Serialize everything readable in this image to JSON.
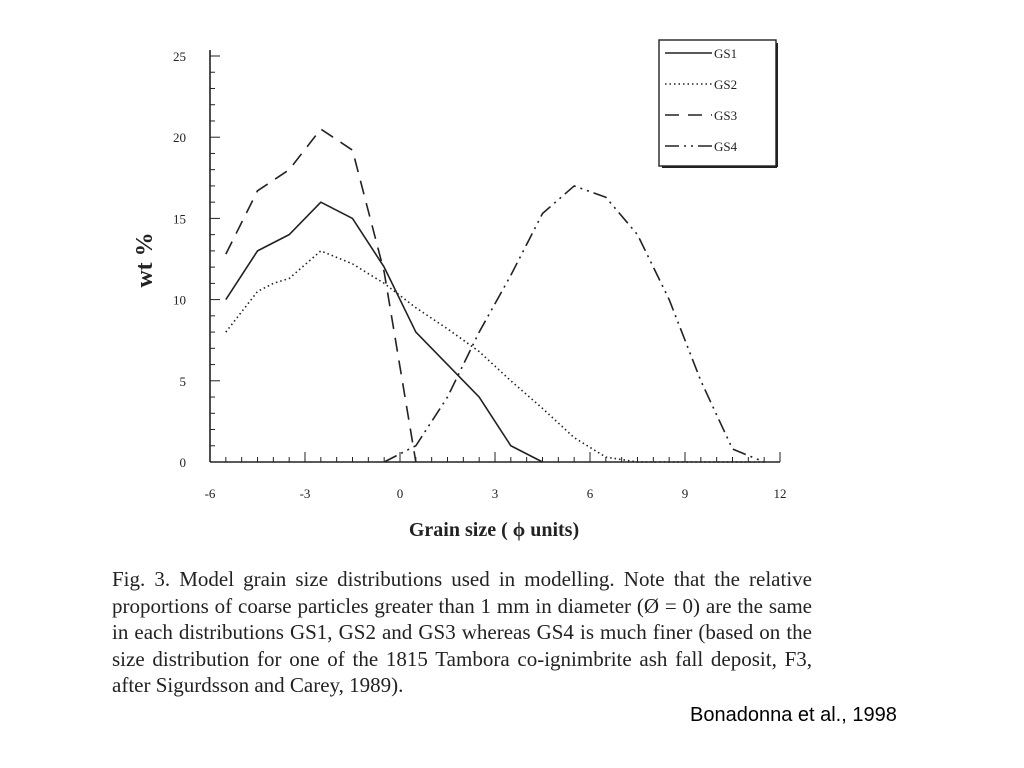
{
  "chart_data": {
    "type": "line",
    "title": "",
    "xlabel": "Grain size ( ϕ  units)",
    "ylabel": "wt %",
    "xlim": [
      -6,
      12
    ],
    "ylim": [
      0,
      25
    ],
    "xticks": [
      -6,
      -3,
      0,
      3,
      6,
      9,
      12
    ],
    "yticks": [
      0,
      5,
      10,
      15,
      20,
      25
    ],
    "legend_position": "top-right",
    "grid": false,
    "series": [
      {
        "name": "GS1",
        "dash": "solid",
        "x": [
          -5.5,
          -4.5,
          -4,
          -3.5,
          -2.5,
          -1.5,
          -0.5,
          0.5,
          1.5,
          2.5,
          3,
          3.5,
          4.5
        ],
        "y": [
          10,
          13,
          13.5,
          14,
          16,
          15,
          12,
          8,
          6,
          4,
          2.5,
          1,
          0
        ]
      },
      {
        "name": "GS2",
        "dash": "dotted",
        "x": [
          -5.5,
          -4.5,
          -4,
          -3.5,
          -2.5,
          -1.5,
          -0.5,
          0.5,
          1.5,
          2.5,
          3.5,
          4.5,
          5.5,
          6.5,
          7.5,
          8.5,
          9.5,
          10.5,
          11.5
        ],
        "y": [
          8,
          10.5,
          11,
          11.3,
          13,
          12.2,
          11,
          9.5,
          8.2,
          6.8,
          5,
          3.3,
          1.5,
          0.3,
          0,
          0,
          0,
          0,
          0
        ]
      },
      {
        "name": "GS3",
        "dash": "dashed",
        "x": [
          -5.5,
          -4.5,
          -3.5,
          -2.5,
          -1.5,
          -0.5,
          0.5
        ],
        "y": [
          12.8,
          16.7,
          18,
          20.5,
          19.2,
          11.7,
          0
        ]
      },
      {
        "name": "GS4",
        "dash": "dashdotdot",
        "x": [
          -0.5,
          0.5,
          1.5,
          2.5,
          3.5,
          4.5,
          5.5,
          6.5,
          7.5,
          8.5,
          9.5,
          10.5,
          11.5
        ],
        "y": [
          0,
          1,
          4,
          8,
          11.5,
          15.3,
          17,
          16.3,
          14,
          10,
          5,
          0.8,
          0
        ]
      }
    ]
  },
  "caption": "Fig. 3. Model grain size distributions used in modelling. Note that the relative proportions of coarse particles greater than 1 mm in diameter (Ø = 0) are the same in each distributions GS1, GS2 and GS3 whereas GS4 is much finer (based on the size distribution for one of the 1815 Tambora co-ignimbrite ash fall deposit, F3, after Sigurdsson and Carey, 1989).",
  "citation": "Bonadonna et al., 1998",
  "colors": {
    "ink": "#222222",
    "background": "#ffffff"
  }
}
